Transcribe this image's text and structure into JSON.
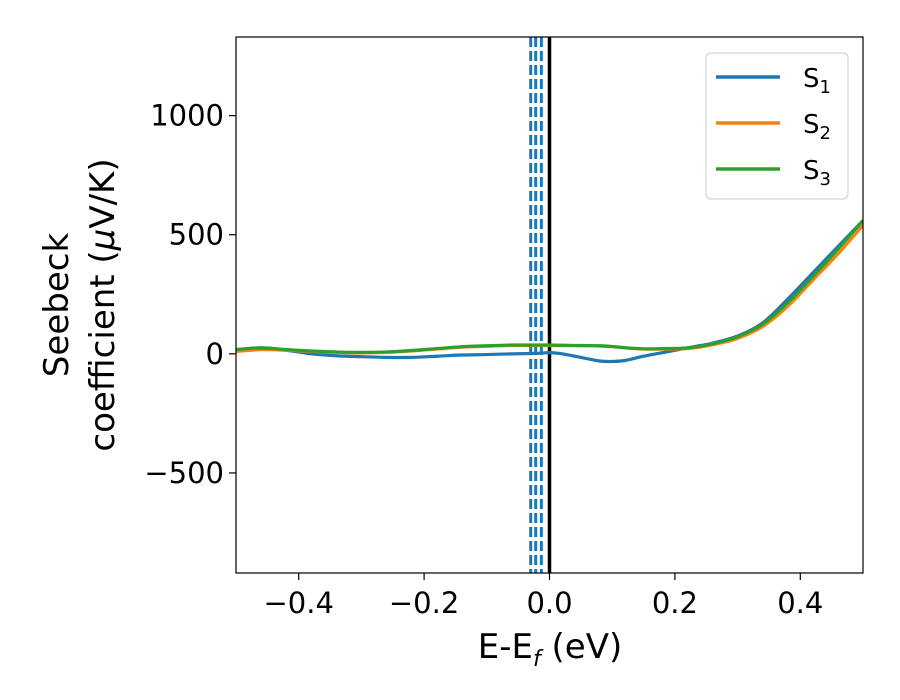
{
  "chart_data": {
    "type": "line",
    "xlabel": {
      "main": "E-E",
      "sub": "f",
      "unit": " (eV)"
    },
    "ylabel": {
      "line1": "Seebeck",
      "line2a": "coefficient  (",
      "mu": "μ",
      "line2b": "V/K)"
    },
    "xlim": [
      -0.5,
      0.5
    ],
    "ylim": [
      -920,
      1330
    ],
    "xticks": [
      {
        "value": -0.4,
        "label": "−0.4"
      },
      {
        "value": -0.2,
        "label": "−0.2"
      },
      {
        "value": 0.0,
        "label": "0.0"
      },
      {
        "value": 0.2,
        "label": "0.2"
      },
      {
        "value": 0.4,
        "label": "0.4"
      }
    ],
    "yticks": [
      {
        "value": -500,
        "label": "−500"
      },
      {
        "value": 0,
        "label": "0"
      },
      {
        "value": 500,
        "label": "500"
      },
      {
        "value": 1000,
        "label": "1000"
      }
    ],
    "grid": false,
    "legend": {
      "placement": "top-right"
    },
    "series": [
      {
        "name": "S",
        "sub": "1",
        "color": "#1f77b4",
        "x": [
          -0.5,
          -0.46,
          -0.42,
          -0.38,
          -0.34,
          -0.3,
          -0.26,
          -0.22,
          -0.18,
          -0.14,
          -0.1,
          -0.06,
          -0.02,
          0.0,
          0.02,
          0.05,
          0.08,
          0.1,
          0.12,
          0.15,
          0.18,
          0.22,
          0.26,
          0.3,
          0.34,
          0.38,
          0.42,
          0.46,
          0.5
        ],
        "y": [
          15,
          25,
          15,
          0,
          -8,
          -12,
          -15,
          -15,
          -10,
          -5,
          -3,
          0,
          2,
          5,
          0,
          -15,
          -30,
          -32,
          -28,
          -10,
          5,
          25,
          45,
          75,
          130,
          230,
          340,
          450,
          560
        ]
      },
      {
        "name": "S",
        "sub": "2",
        "color": "#ff7f0e",
        "x": [
          -0.5,
          -0.46,
          -0.42,
          -0.38,
          -0.34,
          -0.3,
          -0.26,
          -0.22,
          -0.18,
          -0.14,
          -0.1,
          -0.06,
          -0.02,
          0.0,
          0.02,
          0.05,
          0.08,
          0.1,
          0.12,
          0.15,
          0.18,
          0.22,
          0.26,
          0.3,
          0.34,
          0.38,
          0.42,
          0.46,
          0.5
        ],
        "y": [
          10,
          18,
          15,
          10,
          6,
          4,
          6,
          12,
          20,
          28,
          32,
          35,
          35,
          35,
          35,
          34,
          33,
          30,
          25,
          20,
          20,
          22,
          38,
          65,
          115,
          200,
          310,
          420,
          540
        ]
      },
      {
        "name": "S",
        "sub": "3",
        "color": "#2ca02c",
        "x": [
          -0.5,
          -0.46,
          -0.42,
          -0.38,
          -0.34,
          -0.3,
          -0.26,
          -0.22,
          -0.18,
          -0.14,
          -0.1,
          -0.06,
          -0.02,
          0.0,
          0.02,
          0.05,
          0.08,
          0.1,
          0.12,
          0.15,
          0.18,
          0.22,
          0.26,
          0.3,
          0.34,
          0.38,
          0.42,
          0.46,
          0.5
        ],
        "y": [
          18,
          25,
          18,
          12,
          8,
          6,
          8,
          14,
          22,
          30,
          34,
          37,
          37,
          37,
          36,
          35,
          34,
          31,
          26,
          21,
          22,
          25,
          42,
          72,
          125,
          215,
          325,
          440,
          560
        ]
      }
    ],
    "vlines": [
      {
        "x": -0.03,
        "style": "dashed",
        "color": "#1f77b4"
      },
      {
        "x": -0.022,
        "style": "dashed",
        "color": "#1f77b4"
      },
      {
        "x": -0.013,
        "style": "dashed",
        "color": "#1f77b4"
      },
      {
        "x": 0.0,
        "style": "solid",
        "color": "#000000"
      }
    ]
  }
}
